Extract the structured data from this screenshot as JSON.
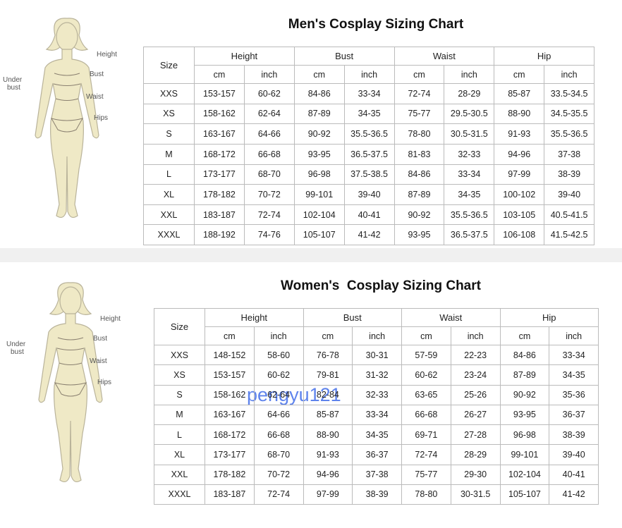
{
  "men": {
    "title": "Men's Cosplay Sizing Chart",
    "figure_labels": [
      "Height",
      "Under bust",
      "Bust",
      "Waist",
      "Hips"
    ],
    "size_header": "Size",
    "groups": [
      "Height",
      "Bust",
      "Waist",
      "Hip"
    ],
    "units": [
      "cm",
      "inch",
      "cm",
      "inch",
      "cm",
      "inch",
      "cm",
      "inch"
    ],
    "rows": [
      [
        "XXS",
        "153-157",
        "60-62",
        "84-86",
        "33-34",
        "72-74",
        "28-29",
        "85-87",
        "33.5-34.5"
      ],
      [
        "XS",
        "158-162",
        "62-64",
        "87-89",
        "34-35",
        "75-77",
        "29.5-30.5",
        "88-90",
        "34.5-35.5"
      ],
      [
        "S",
        "163-167",
        "64-66",
        "90-92",
        "35.5-36.5",
        "78-80",
        "30.5-31.5",
        "91-93",
        "35.5-36.5"
      ],
      [
        "M",
        "168-172",
        "66-68",
        "93-95",
        "36.5-37.5",
        "81-83",
        "32-33",
        "94-96",
        "37-38"
      ],
      [
        "L",
        "173-177",
        "68-70",
        "96-98",
        "37.5-38.5",
        "84-86",
        "33-34",
        "97-99",
        "38-39"
      ],
      [
        "XL",
        "178-182",
        "70-72",
        "99-101",
        "39-40",
        "87-89",
        "34-35",
        "100-102",
        "39-40"
      ],
      [
        "XXL",
        "183-187",
        "72-74",
        "102-104",
        "40-41",
        "90-92",
        "35.5-36.5",
        "103-105",
        "40.5-41.5"
      ],
      [
        "XXXL",
        "188-192",
        "74-76",
        "105-107",
        "41-42",
        "93-95",
        "36.5-37.5",
        "106-108",
        "41.5-42.5"
      ]
    ]
  },
  "women": {
    "title": "Women's  Cosplay Sizing Chart",
    "figure_labels": [
      "Height",
      "Under bust",
      "Bust",
      "Waist",
      "Hips"
    ],
    "size_header": "Size",
    "groups": [
      "Height",
      "Bust",
      "Waist",
      "Hip"
    ],
    "units": [
      "cm",
      "inch",
      "cm",
      "inch",
      "cm",
      "inch",
      "cm",
      "inch"
    ],
    "rows": [
      [
        "XXS",
        "148-152",
        "58-60",
        "76-78",
        "30-31",
        "57-59",
        "22-23",
        "84-86",
        "33-34"
      ],
      [
        "XS",
        "153-157",
        "60-62",
        "79-81",
        "31-32",
        "60-62",
        "23-24",
        "87-89",
        "34-35"
      ],
      [
        "S",
        "158-162",
        "62-64",
        "82-84",
        "32-33",
        "63-65",
        "25-26",
        "90-92",
        "35-36"
      ],
      [
        "M",
        "163-167",
        "64-66",
        "85-87",
        "33-34",
        "66-68",
        "26-27",
        "93-95",
        "36-37"
      ],
      [
        "L",
        "168-172",
        "66-68",
        "88-90",
        "34-35",
        "69-71",
        "27-28",
        "96-98",
        "38-39"
      ],
      [
        "XL",
        "173-177",
        "68-70",
        "91-93",
        "36-37",
        "72-74",
        "28-29",
        "99-101",
        "39-40"
      ],
      [
        "XXL",
        "178-182",
        "70-72",
        "94-96",
        "37-38",
        "75-77",
        "29-30",
        "102-104",
        "40-41"
      ],
      [
        "XXXL",
        "183-187",
        "72-74",
        "97-99",
        "38-39",
        "78-80",
        "30-31.5",
        "105-107",
        "41-42"
      ]
    ]
  },
  "watermark": "pengyu121"
}
